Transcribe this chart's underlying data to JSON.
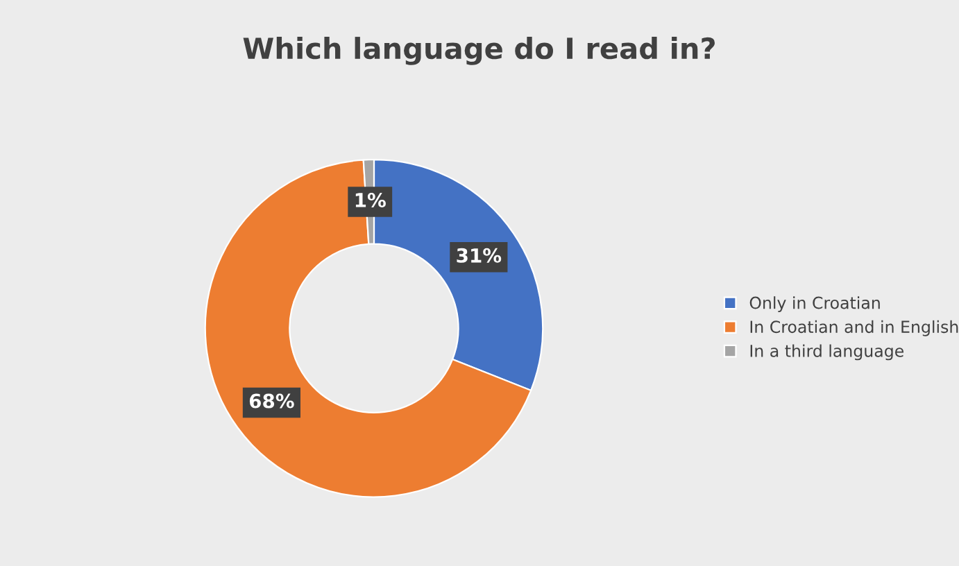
{
  "chart_data": {
    "type": "donut",
    "title": "Which language do I read in?",
    "categories": [
      "Only in Croatian",
      "In Croatian and in English",
      "In a third language"
    ],
    "values": [
      31,
      68,
      1
    ],
    "value_labels": [
      "31%",
      "68%",
      "1%"
    ],
    "colors": [
      "#4472c4",
      "#ed7d31",
      "#a5a5a5"
    ],
    "legend": "right"
  }
}
